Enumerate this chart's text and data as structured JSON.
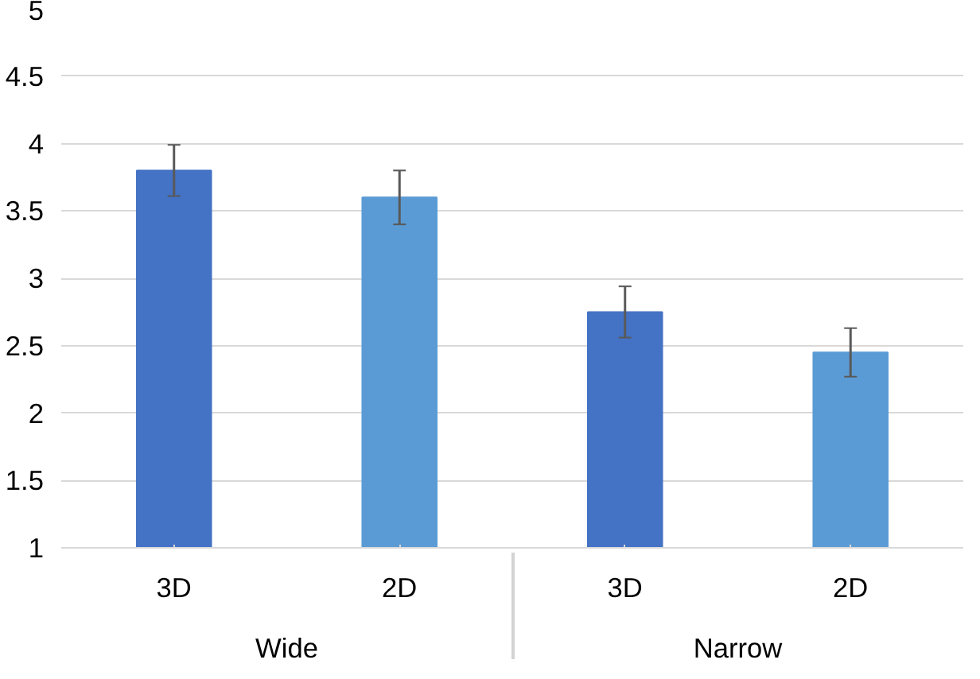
{
  "chart_data": {
    "type": "bar",
    "categories": [
      "3D",
      "2D",
      "3D",
      "2D"
    ],
    "values": [
      3.8,
      3.6,
      2.75,
      2.45
    ],
    "colors": [
      "#4472c4",
      "#5b9bd5",
      "#4472c4",
      "#5b9bd5"
    ],
    "errors": [
      0.19,
      0.2,
      0.19,
      0.18
    ],
    "ylim": [
      1,
      5
    ],
    "yticks": [
      1,
      1.5,
      2,
      2.5,
      3,
      3.5,
      4,
      4.5,
      5
    ],
    "grid": "y",
    "annotations": [
      "Wide",
      "Narrow"
    ]
  }
}
